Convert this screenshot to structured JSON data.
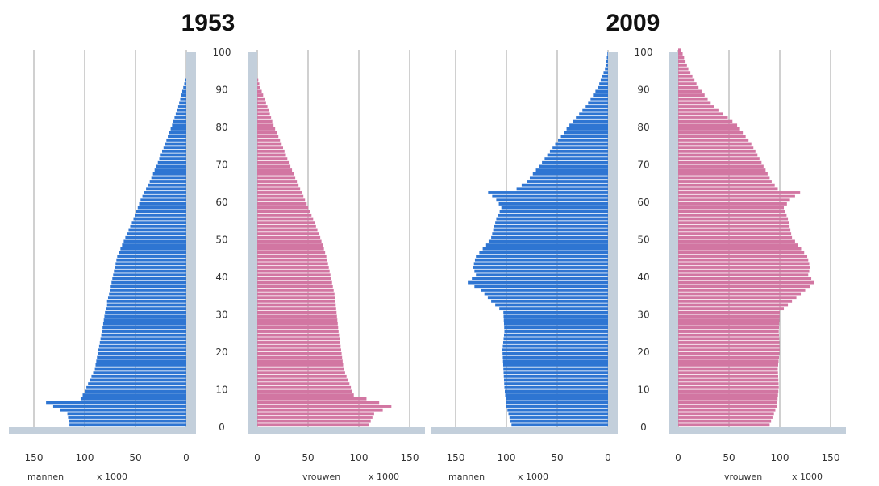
{
  "colors": {
    "male": "#2e75d2",
    "female": "#d276a2",
    "axis": "#c3cfdb",
    "grid": "#a0a0a0"
  },
  "labels": {
    "male": "mannen",
    "female": "vrouwen",
    "unit": "x 1000"
  },
  "chart_data": [
    {
      "type": "bar",
      "title": "1953",
      "orientation": "horizontal population pyramid",
      "y_axis": {
        "label": "",
        "range": [
          0,
          100
        ],
        "ticks": [
          0,
          10,
          20,
          30,
          40,
          50,
          60,
          70,
          80,
          90,
          100
        ]
      },
      "male_axis": {
        "range": [
          0,
          160
        ],
        "ticks": [
          150,
          100,
          50,
          0
        ],
        "label": "mannen",
        "unit": "x 1000"
      },
      "female_axis": {
        "range": [
          0,
          160
        ],
        "ticks": [
          0,
          50,
          100,
          150
        ],
        "label": "vrouwen",
        "unit": "x 1000"
      },
      "grid": true,
      "series": [
        {
          "name": "mannen",
          "age_points": [
            [
              0,
              115
            ],
            [
              3,
              117
            ],
            [
              6,
              138
            ],
            [
              7,
              104
            ],
            [
              9,
              100
            ],
            [
              15,
              90
            ],
            [
              25,
              83
            ],
            [
              30,
              80
            ],
            [
              32,
              78
            ],
            [
              33,
              78
            ],
            [
              35,
              76
            ],
            [
              40,
              72
            ],
            [
              45,
              68
            ],
            [
              50,
              60
            ],
            [
              55,
              52
            ],
            [
              60,
              45
            ],
            [
              65,
              36
            ],
            [
              70,
              28
            ],
            [
              75,
              21
            ],
            [
              80,
              14
            ],
            [
              85,
              8
            ],
            [
              90,
              3
            ],
            [
              92,
              1
            ],
            [
              93,
              0
            ]
          ]
        },
        {
          "name": "vrouwen",
          "age_points": [
            [
              0,
              110
            ],
            [
              3,
              115
            ],
            [
              5,
              132
            ],
            [
              6,
              120
            ],
            [
              8,
              95
            ],
            [
              15,
              85
            ],
            [
              25,
              80
            ],
            [
              30,
              78
            ],
            [
              35,
              76
            ],
            [
              40,
              72
            ],
            [
              45,
              68
            ],
            [
              50,
              62
            ],
            [
              55,
              55
            ],
            [
              60,
              47
            ],
            [
              65,
              39
            ],
            [
              70,
              31
            ],
            [
              75,
              24
            ],
            [
              80,
              16
            ],
            [
              85,
              10
            ],
            [
              90,
              3
            ],
            [
              93,
              0
            ]
          ]
        }
      ]
    },
    {
      "type": "bar",
      "title": "2009",
      "orientation": "horizontal population pyramid",
      "y_axis": {
        "label": "",
        "range": [
          0,
          100
        ],
        "ticks": [
          0,
          10,
          20,
          30,
          40,
          50,
          60,
          70,
          80,
          90,
          100
        ]
      },
      "male_axis": {
        "range": [
          0,
          160
        ],
        "ticks": [
          150,
          100,
          50,
          0
        ],
        "label": "mannen",
        "unit": "x 1000"
      },
      "female_axis": {
        "range": [
          0,
          160
        ],
        "ticks": [
          0,
          50,
          100,
          150
        ],
        "label": "vrouwen",
        "unit": "x 1000"
      },
      "grid": true,
      "series": [
        {
          "name": "mannen",
          "age_points": [
            [
              0,
              95
            ],
            [
              5,
              100
            ],
            [
              10,
              102
            ],
            [
              15,
              103
            ],
            [
              20,
              104
            ],
            [
              25,
              102
            ],
            [
              30,
              103
            ],
            [
              33,
              115
            ],
            [
              36,
              125
            ],
            [
              38,
              138
            ],
            [
              40,
              130
            ],
            [
              42,
              133
            ],
            [
              45,
              130
            ],
            [
              48,
              120
            ],
            [
              50,
              115
            ],
            [
              55,
              110
            ],
            [
              58,
              105
            ],
            [
              60,
              110
            ],
            [
              62,
              118
            ],
            [
              63,
              90
            ],
            [
              65,
              80
            ],
            [
              70,
              65
            ],
            [
              75,
              52
            ],
            [
              80,
              38
            ],
            [
              85,
              22
            ],
            [
              90,
              10
            ],
            [
              95,
              3
            ],
            [
              100,
              0
            ]
          ]
        },
        {
          "name": "vrouwen",
          "age_points": [
            [
              0,
              90
            ],
            [
              5,
              97
            ],
            [
              10,
              99
            ],
            [
              15,
              98
            ],
            [
              20,
              100
            ],
            [
              25,
              99
            ],
            [
              30,
              100
            ],
            [
              33,
              112
            ],
            [
              36,
              125
            ],
            [
              38,
              134
            ],
            [
              40,
              128
            ],
            [
              42,
              130
            ],
            [
              45,
              127
            ],
            [
              48,
              118
            ],
            [
              50,
              112
            ],
            [
              55,
              108
            ],
            [
              58,
              104
            ],
            [
              60,
              110
            ],
            [
              62,
              120
            ],
            [
              63,
              98
            ],
            [
              65,
              92
            ],
            [
              70,
              82
            ],
            [
              75,
              72
            ],
            [
              80,
              58
            ],
            [
              85,
              35
            ],
            [
              90,
              20
            ],
            [
              95,
              10
            ],
            [
              100,
              3
            ]
          ]
        }
      ]
    }
  ]
}
